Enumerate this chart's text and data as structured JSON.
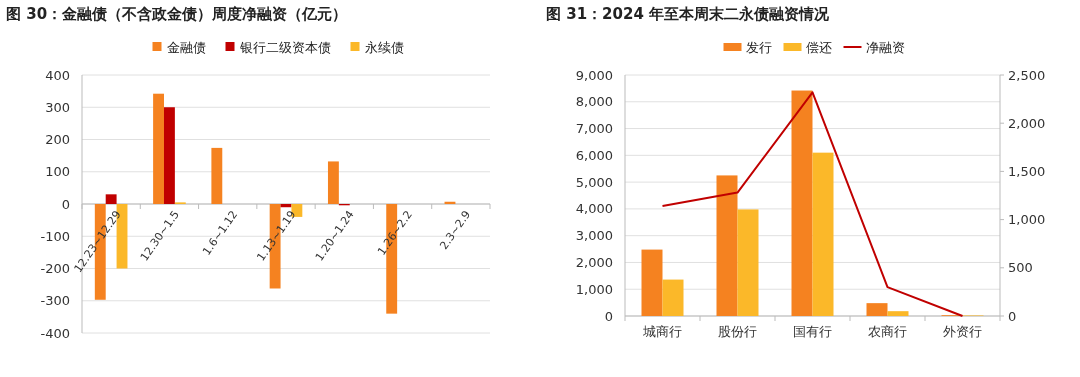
{
  "chart_data": [
    {
      "type": "bar",
      "title": "图 30：金融债（不含政金债）周度净融资（亿元）",
      "categories": [
        "12.23~12.29",
        "12.30~1.5",
        "1.6~1.12",
        "1.13~1.19",
        "1.20~1.24",
        "1.26~2.2",
        "2.3~2.9"
      ],
      "series": [
        {
          "name": "金融债",
          "color": "#f58220",
          "values": [
            -297,
            342,
            174,
            -262,
            132,
            -340,
            7
          ]
        },
        {
          "name": "银行二级资本债",
          "color": "#c00000",
          "values": [
            30,
            300,
            0,
            -10,
            -4,
            0,
            0
          ]
        },
        {
          "name": "永续债",
          "color": "#fbb829",
          "values": [
            -200,
            5,
            0,
            -40,
            0,
            0,
            0
          ]
        }
      ],
      "ylim": [
        -400,
        400
      ],
      "yticks": [
        -400,
        -300,
        -200,
        -100,
        0,
        100,
        200,
        300,
        400
      ],
      "grid": "y",
      "legend": "top"
    },
    {
      "type": "bar",
      "title": "图 31：2024 年至本周末二永债融资情况",
      "categories": [
        "城商行",
        "股份行",
        "国有行",
        "农商行",
        "外资行"
      ],
      "series": [
        {
          "name": "发行",
          "color": "#f58220",
          "values": [
            2480,
            5250,
            8420,
            480,
            30
          ]
        },
        {
          "name": "偿还",
          "color": "#fbb829",
          "values": [
            1360,
            3980,
            6100,
            180,
            20
          ]
        },
        {
          "name": "净融资",
          "type": "line",
          "axis": "y2",
          "color": "#c00000",
          "values": [
            1140,
            1280,
            2320,
            300,
            0
          ]
        }
      ],
      "ylim": [
        0,
        9000
      ],
      "yticks": [
        0,
        {
          "value": 1000,
          "label": "1,000"
        },
        {
          "value": 2000,
          "label": "2,000"
        },
        {
          "value": 3000,
          "label": "3,000"
        },
        {
          "value": 4000,
          "label": "4,000"
        },
        {
          "value": 5000,
          "label": "5,000"
        },
        {
          "value": 6000,
          "label": "6,000"
        },
        {
          "value": 7000,
          "label": "7,000"
        },
        {
          "value": 8000,
          "label": "8,000"
        },
        {
          "value": 9000,
          "label": "9,000"
        }
      ],
      "y2lim": [
        0,
        2500
      ],
      "y2ticks": [
        0,
        500,
        {
          "value": 1000,
          "label": "1,000"
        },
        {
          "value": 1500,
          "label": "1,500"
        },
        {
          "value": 2000,
          "label": "2,000"
        },
        {
          "value": 2500,
          "label": "2,500"
        }
      ],
      "grid": "y",
      "legend": "top"
    }
  ]
}
